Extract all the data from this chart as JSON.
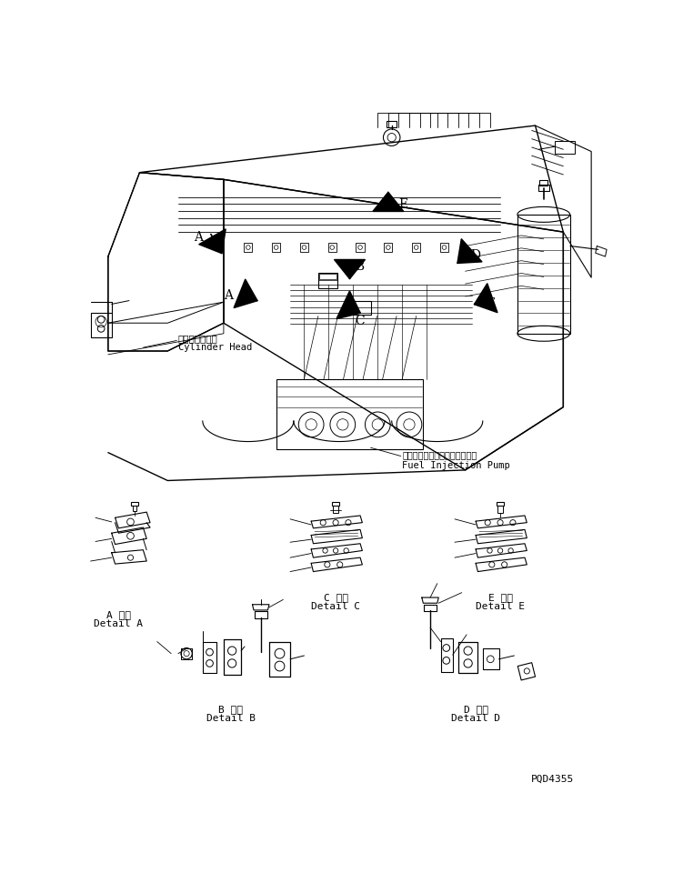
{
  "background_color": "#ffffff",
  "line_color": "#000000",
  "figure_width": 7.51,
  "figure_height": 9.71,
  "dpi": 100,
  "labels": {
    "cylinder_head_jp": "シリンダヘッド",
    "cylinder_head_en": "Cylinder Head",
    "fuel_pump_jp": "フェルインジェクションポンプ",
    "fuel_pump_en": "Fuel Injection Pump",
    "detail_a_jp": "A 詳細",
    "detail_a_en": "Detail A",
    "detail_b_jp": "B 詳細",
    "detail_b_en": "Detail B",
    "detail_c_jp": "C 詳細",
    "detail_c_en": "Detail C",
    "detail_d_jp": "D 詳細",
    "detail_d_en": "Detail D",
    "detail_e_jp": "E 詳細",
    "detail_e_en": "Detail E",
    "part_number": "PQD4355"
  }
}
